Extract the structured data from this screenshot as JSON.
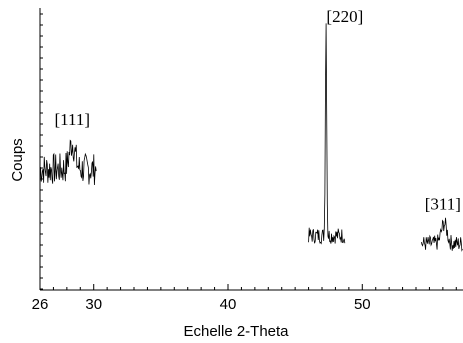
{
  "chart_data": {
    "type": "line",
    "title": "",
    "xlabel": "Echelle 2-Theta",
    "ylabel": "Coups",
    "xlim": [
      26,
      57.5
    ],
    "ylim": [
      0,
      140
    ],
    "x_ticks": [
      26,
      30,
      40,
      50
    ],
    "y_tick_labels_shown": false,
    "grid": false,
    "color": "#000000",
    "series": [
      {
        "segments": [
          {
            "x_start": 26.0,
            "x_end": 30.2,
            "baseline": 60,
            "noise": 8
          },
          {
            "x_start": 46.0,
            "x_end": 48.7,
            "baseline": 27,
            "noise": 4
          },
          {
            "x_start": 54.4,
            "x_end": 57.5,
            "baseline": 23,
            "noise": 4
          }
        ],
        "peaks": [
          {
            "x": 28.4,
            "height": 73,
            "width": 0.3
          },
          {
            "x": 47.3,
            "height": 133,
            "width": 0.07
          },
          {
            "x": 56.1,
            "height": 33,
            "width": 0.3
          }
        ]
      }
    ],
    "annotations": [
      {
        "text": "[111]",
        "x": 28.4,
        "y": 82
      },
      {
        "text": "[220]",
        "x": 48.7,
        "y": 133
      },
      {
        "text": "[311]",
        "x": 56.0,
        "y": 40
      }
    ]
  }
}
